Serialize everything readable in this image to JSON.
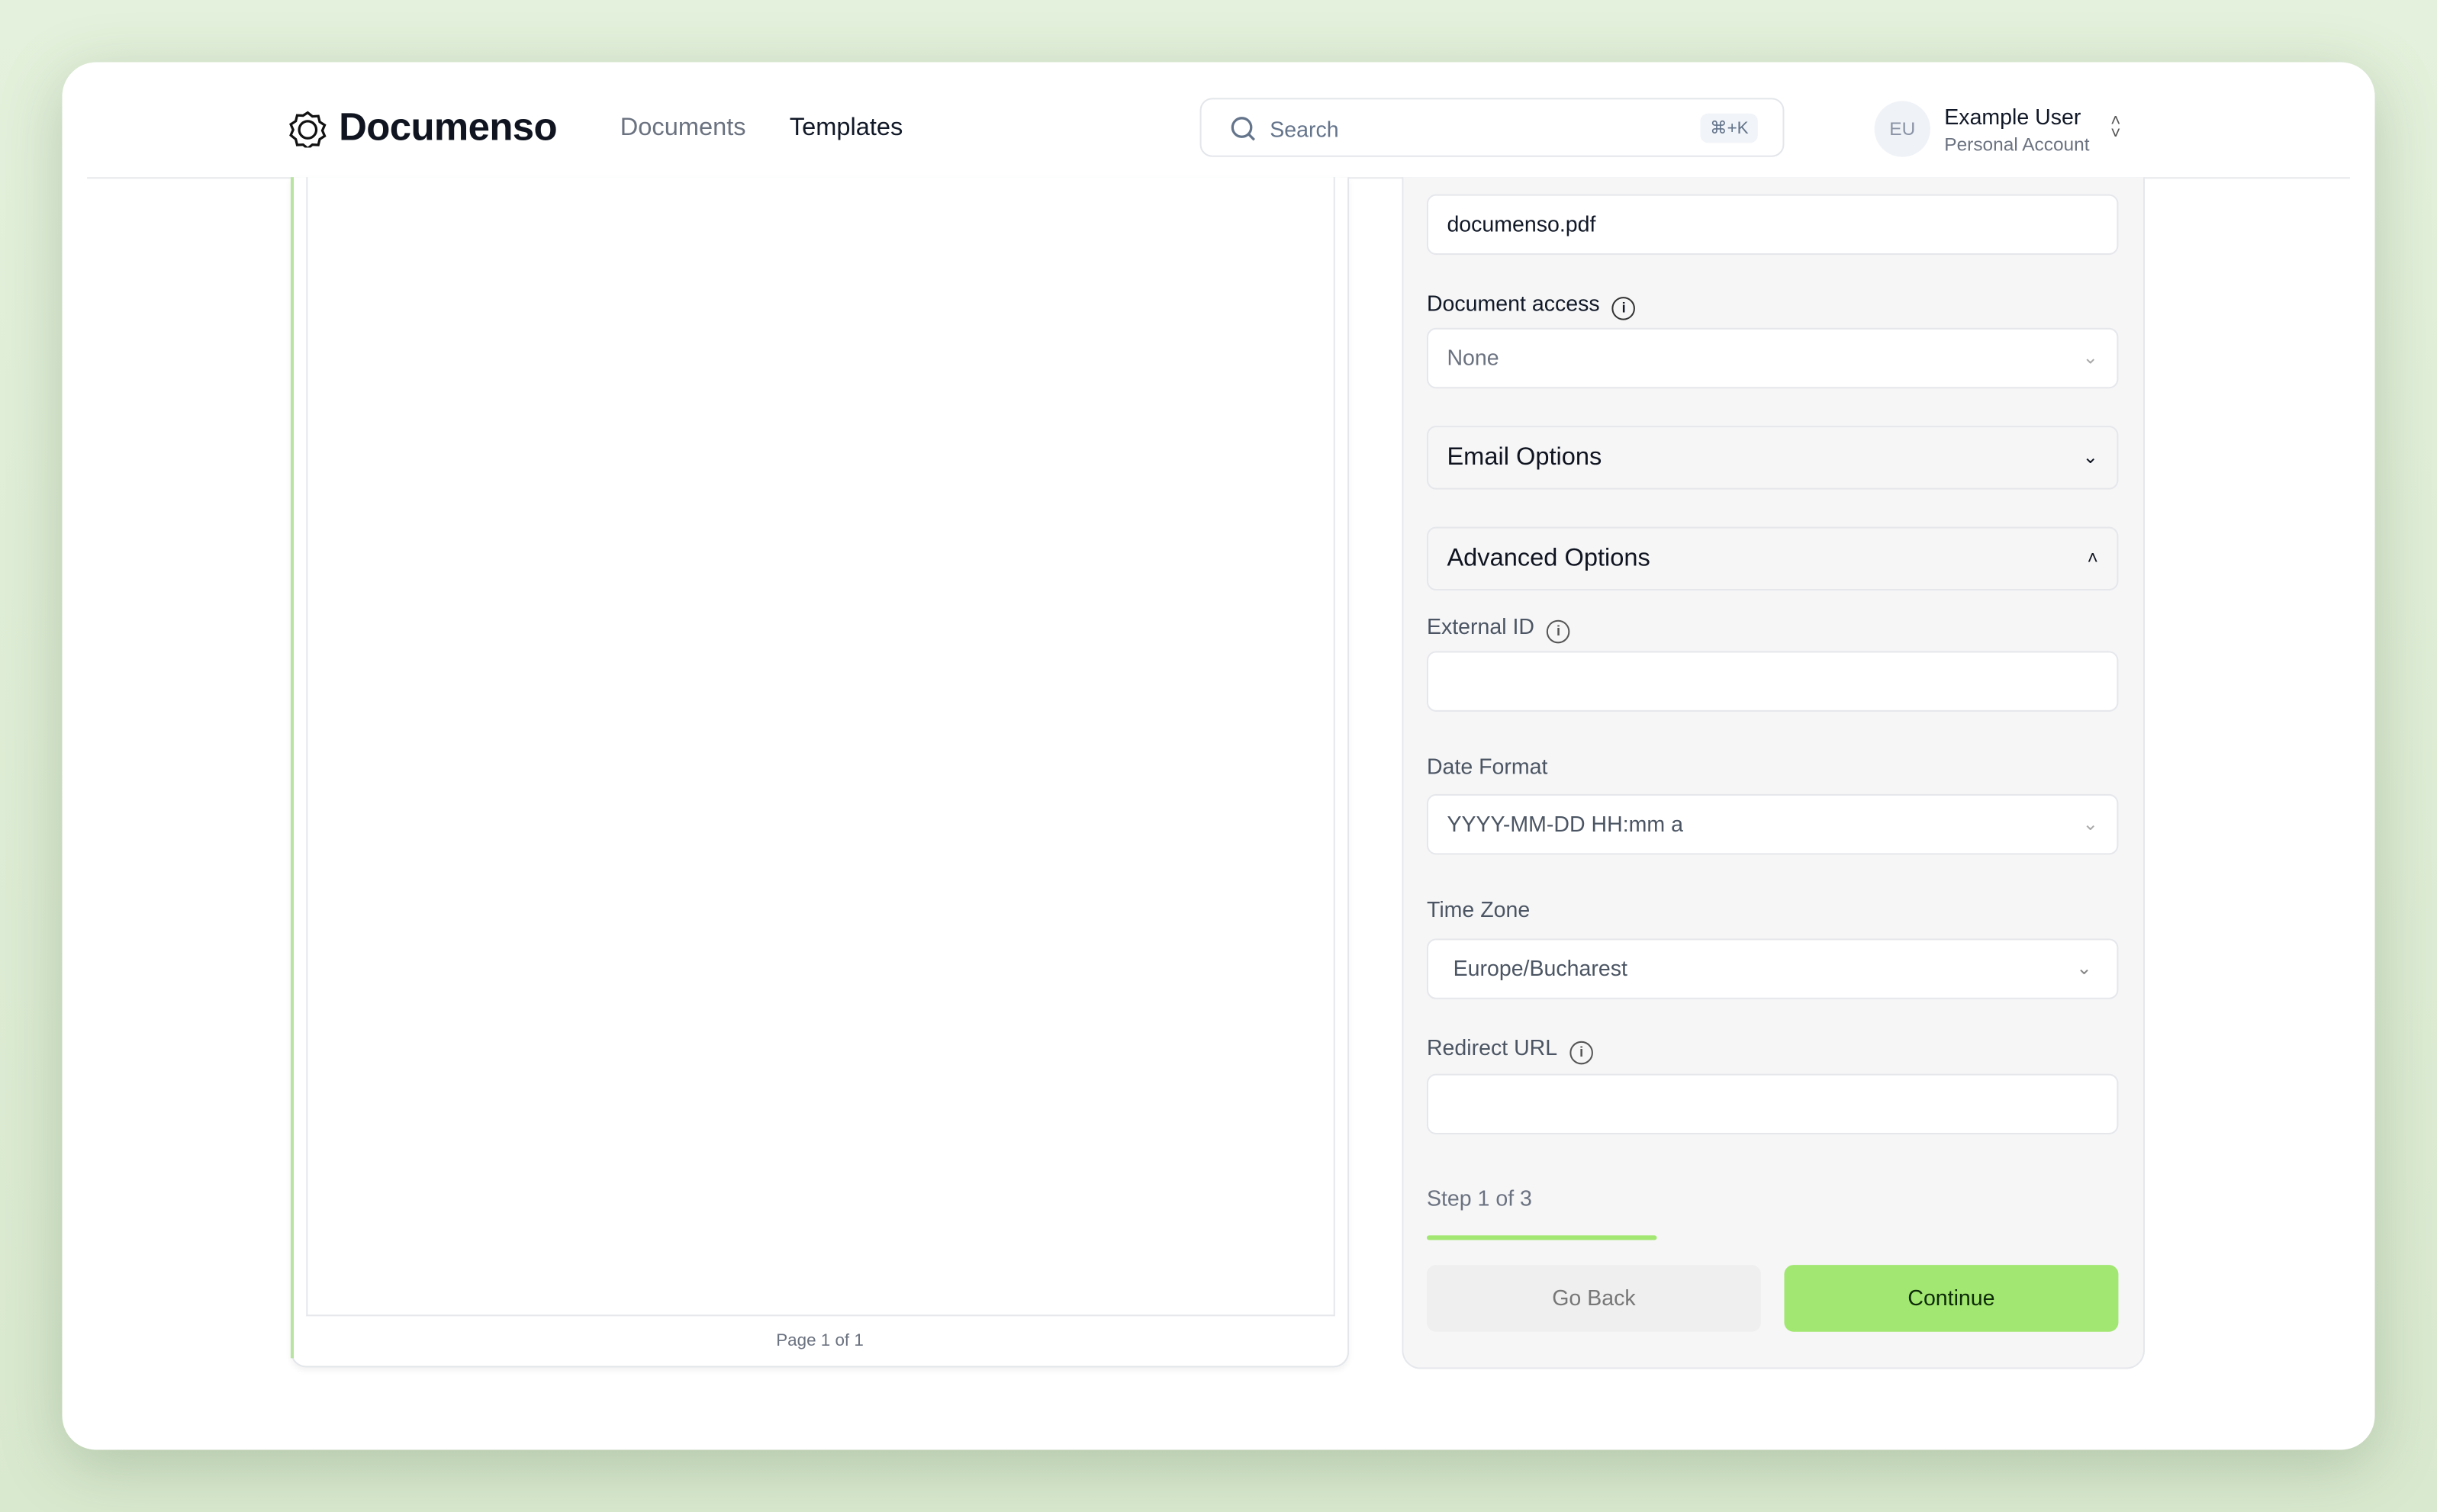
{
  "header": {
    "brand": "Documenso",
    "nav": [
      {
        "label": "Documents"
      },
      {
        "label": "Templates"
      }
    ],
    "search": {
      "placeholder": "Search",
      "shortcut": "⌘+K"
    },
    "user": {
      "initials": "EU",
      "name": "Example User",
      "account": "Personal Account"
    }
  },
  "document": {
    "page_label": "Page 1 of 1"
  },
  "form": {
    "title_value": "documenso.pdf",
    "access": {
      "label": "Document access",
      "value": "None"
    },
    "email_options": "Email Options",
    "advanced_options": "Advanced Options",
    "external_id": {
      "label": "External ID",
      "value": ""
    },
    "date_format": {
      "label": "Date Format",
      "value": "YYYY-MM-DD HH:mm a"
    },
    "time_zone": {
      "label": "Time Zone",
      "value": "Europe/Bucharest"
    },
    "redirect_url": {
      "label": "Redirect URL",
      "value": ""
    },
    "step": {
      "label": "Step 1 of 3",
      "progress": 0.3333
    },
    "back_label": "Go Back",
    "continue_label": "Continue"
  },
  "colors": {
    "accent": "#a2e771",
    "background": "#e4f1dc"
  }
}
